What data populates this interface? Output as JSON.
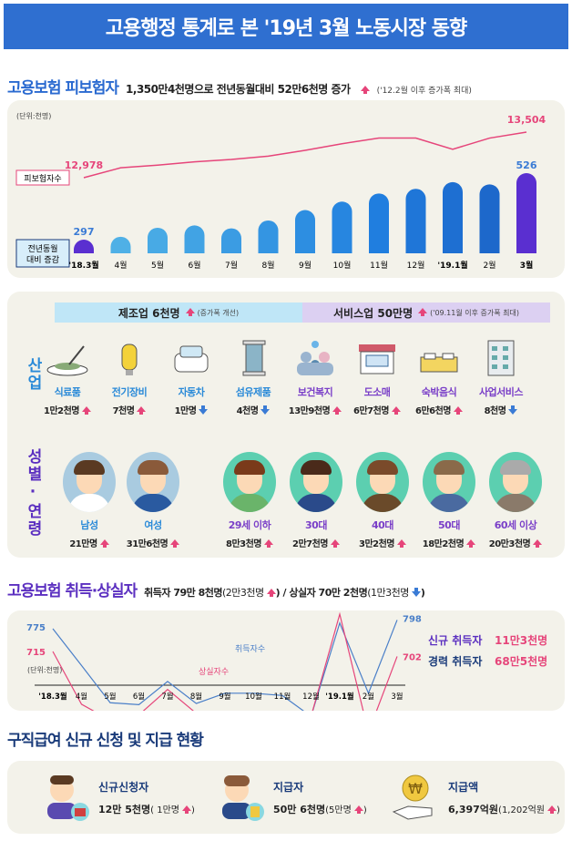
{
  "title": "고용행정 통계로 본 '19년 3월 노동시장 동향",
  "insured": {
    "heading": "고용보험 피보험자",
    "summary": "1,350만4천명으로 전년동월대비 52만6천명 증가",
    "note": "('12.2월 이후 증가폭 최대)",
    "unit": "(단위:천명)",
    "line_label": "피보험자수",
    "bar_label_1": "전년동월",
    "bar_label_2": "대비 증감"
  },
  "industry": {
    "side_label": "산업",
    "manufacturing": {
      "label": "제조업 6천명",
      "note": "(증가폭 개선)"
    },
    "service": {
      "label": "서비스업 50만명",
      "note": "('09.11월 이후 증가폭 최대)"
    },
    "items": [
      {
        "name": "식료품",
        "value": "1만2천명",
        "dir": "up",
        "icon": "food-bowl-icon"
      },
      {
        "name": "전기장비",
        "value": "7천명",
        "dir": "up",
        "icon": "light-bulb-icon"
      },
      {
        "name": "자동차",
        "value": "1만명",
        "dir": "down",
        "icon": "car-icon"
      },
      {
        "name": "섬유제품",
        "value": "4천명",
        "dir": "down",
        "icon": "thread-spool-icon"
      },
      {
        "name": "보건복지",
        "value": "13만9천명",
        "dir": "up",
        "icon": "people-care-icon"
      },
      {
        "name": "도소매",
        "value": "6만7천명",
        "dir": "up",
        "icon": "shop-sale-icon"
      },
      {
        "name": "숙박음식",
        "value": "6만6천명",
        "dir": "up",
        "icon": "bed-icon"
      },
      {
        "name": "사업서비스",
        "value": "8천명",
        "dir": "down",
        "icon": "office-building-icon"
      }
    ]
  },
  "demographics": {
    "side_label": "성별·연령",
    "items": [
      {
        "name": "남성",
        "value": "21만명",
        "dir": "up"
      },
      {
        "name": "여성",
        "value": "31만6천명",
        "dir": "up"
      },
      {
        "name": "29세 이하",
        "value": "8만3천명",
        "dir": "up"
      },
      {
        "name": "30대",
        "value": "2만7천명",
        "dir": "up"
      },
      {
        "name": "40대",
        "value": "3만2천명",
        "dir": "up"
      },
      {
        "name": "50대",
        "value": "18만2천명",
        "dir": "up"
      },
      {
        "name": "60세 이상",
        "value": "20만3천명",
        "dir": "up"
      }
    ]
  },
  "flows": {
    "heading": "고용보험 취득·상실자",
    "acq": "취득자 79만 8천명",
    "acq_change": "(2만3천명",
    "sep": "/ 상실자 70만 2천명",
    "sep_change": "(1만3천명",
    "close": ")",
    "unit": "(단위:천명)",
    "acq_line_label": "취득자수",
    "sep_line_label": "상실자수",
    "new_label": "신규 취득자",
    "new_value": "11만3천명",
    "exp_label": "경력 취득자",
    "exp_value": "68만5천명"
  },
  "benefits": {
    "heading": "구직급여 신규 신청 및 지급 현황",
    "items": [
      {
        "label": "신규신청자",
        "value": "12만 5천명",
        "change": "( 1만명"
      },
      {
        "label": "지급자",
        "value": "50만 6천명",
        "change": "(5만명"
      },
      {
        "label": "지급액",
        "value": "6,397억원",
        "change": "(1,202억원"
      }
    ],
    "close": ")"
  },
  "colors": {
    "title_bg": "#2f6fd0",
    "blue_heading": "#2a6ad0",
    "purple_heading": "#5b2fc0",
    "pink": "#e6457a",
    "bar_blue": "#3aa0e8",
    "bar_purple": "#5a2fd0",
    "acq_line": "#4a7fc8",
    "sep_line": "#e6457a"
  },
  "chart_data": [
    {
      "type": "bar+line",
      "categories": [
        "'18.3월",
        "4월",
        "5월",
        "6월",
        "7월",
        "8월",
        "9월",
        "10월",
        "11월",
        "12월",
        "'19.1월",
        "2월",
        "3월"
      ],
      "series": [
        {
          "name": "피보험자수",
          "type": "line",
          "values": [
            12978,
            13092,
            13123,
            13161,
            13188,
            13226,
            13294,
            13370,
            13435,
            13435,
            13306,
            13435,
            13504
          ],
          "labeled": [
            12978,
            13504
          ]
        },
        {
          "name": "전년동월 대비 증감",
          "type": "bar",
          "values": [
            297,
            307,
            338,
            346,
            336,
            363,
            399,
            428,
            456,
            472,
            495,
            487,
            526
          ],
          "labeled": [
            297,
            526
          ]
        }
      ],
      "unit": "(단위:천명)"
    },
    {
      "type": "line",
      "categories": [
        "'18.3월",
        "4월",
        "5월",
        "6월",
        "7월",
        "8월",
        "9월",
        "10월",
        "11월",
        "12월",
        "'19.1월",
        "2월",
        "3월"
      ],
      "series": [
        {
          "name": "취득자수",
          "values": [
            775,
            678,
            580,
            575,
            636,
            578,
            605,
            605,
            599,
            544,
            790,
            605,
            798
          ],
          "labeled": [
            775,
            798
          ]
        },
        {
          "name": "상실자수",
          "values": [
            715,
            576,
            534,
            548,
            615,
            552,
            531,
            512,
            534,
            544,
            884,
            502,
            702
          ],
          "labeled": [
            715,
            702
          ]
        }
      ],
      "unit": "(단위:천명)"
    }
  ]
}
